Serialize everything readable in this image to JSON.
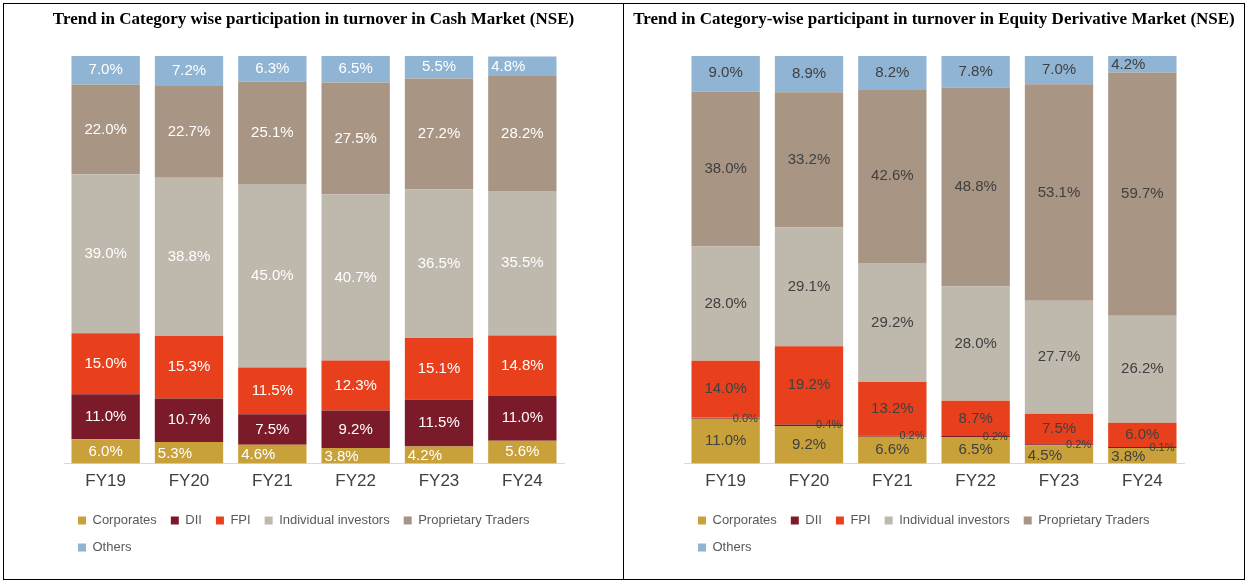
{
  "chart_data": [
    {
      "type": "bar",
      "title": "Trend in Category wise participation in turnover in Cash Market (NSE)",
      "categories": [
        "FY19",
        "FY20",
        "FY21",
        "FY22",
        "FY23",
        "FY24"
      ],
      "stacked": true,
      "ylim": [
        0,
        100
      ],
      "tick_labels": "x",
      "grid": false,
      "legend": "bottom",
      "series": [
        {
          "name": "Corporates",
          "color": "#c9a13a",
          "values": [
            6.0,
            5.3,
            4.6,
            3.8,
            4.2,
            5.6
          ],
          "value_labels": [
            "6.0%",
            "5.3%",
            "4.6%",
            "3.8%",
            "4.2%",
            "5.6%"
          ]
        },
        {
          "name": "DII",
          "color": "#7b1b2a",
          "values": [
            11.0,
            10.7,
            7.5,
            9.2,
            11.5,
            11.0
          ],
          "value_labels": [
            "11.0%",
            "10.7%",
            "7.5%",
            "9.2%",
            "11.5%",
            "11.0%"
          ]
        },
        {
          "name": "FPI",
          "color": "#e8401c",
          "values": [
            15.0,
            15.3,
            11.5,
            12.3,
            15.1,
            14.8
          ],
          "value_labels": [
            "15.0%",
            "15.3%",
            "11.5%",
            "12.3%",
            "15.1%",
            "14.8%"
          ]
        },
        {
          "name": "Individual investors",
          "color": "#bfb8ad",
          "values": [
            39.0,
            38.8,
            45.0,
            40.7,
            36.5,
            35.5
          ],
          "value_labels": [
            "39.0%",
            "38.8%",
            "45.0%",
            "40.7%",
            "36.5%",
            "35.5%"
          ]
        },
        {
          "name": "Proprietary Traders",
          "color": "#a89584",
          "values": [
            22.0,
            22.7,
            25.1,
            27.5,
            27.2,
            28.2
          ],
          "value_labels": [
            "22.0%",
            "22.7%",
            "25.1%",
            "27.5%",
            "27.2%",
            "28.2%"
          ]
        },
        {
          "name": "Others",
          "color": "#8fb4d4",
          "values": [
            7.0,
            7.2,
            6.3,
            6.5,
            5.5,
            4.8
          ],
          "value_labels": [
            "7.0%",
            "7.2%",
            "6.3%",
            "6.5%",
            "5.5%",
            "4.8%"
          ]
        }
      ]
    },
    {
      "type": "bar",
      "title": "Trend in Category-wise participant in turnover in Equity Derivative Market (NSE)",
      "categories": [
        "FY19",
        "FY20",
        "FY21",
        "FY22",
        "FY23",
        "FY24"
      ],
      "stacked": true,
      "ylim": [
        0,
        100
      ],
      "tick_labels": "x",
      "grid": false,
      "legend": "bottom",
      "series": [
        {
          "name": "Corporates",
          "color": "#c9a13a",
          "values": [
            11.0,
            9.2,
            6.6,
            6.5,
            4.5,
            3.8
          ],
          "value_labels": [
            "11.0%",
            "9.2%",
            "6.6%",
            "6.5%",
            "4.5%",
            "3.8%"
          ]
        },
        {
          "name": "DII",
          "color": "#7b1b2a",
          "values": [
            0.0,
            0.4,
            0.2,
            0.2,
            0.2,
            0.1
          ],
          "value_labels": [
            "0.0%",
            "0.4%",
            "0.2%",
            "0.2%",
            "0.2%",
            "0.1%"
          ]
        },
        {
          "name": "FPI",
          "color": "#e8401c",
          "values": [
            14.0,
            19.2,
            13.2,
            8.7,
            7.5,
            6.0
          ],
          "value_labels": [
            "14.0%",
            "19.2%",
            "13.2%",
            "8.7%",
            "7.5%",
            "6.0%"
          ]
        },
        {
          "name": "Individual investors",
          "color": "#bfb8ad",
          "values": [
            28.0,
            29.1,
            29.2,
            28.0,
            27.7,
            26.2
          ],
          "value_labels": [
            "28.0%",
            "29.1%",
            "29.2%",
            "28.0%",
            "27.7%",
            "26.2%"
          ]
        },
        {
          "name": "Proprietary Traders",
          "color": "#a89584",
          "values": [
            38.0,
            33.2,
            42.6,
            48.8,
            53.1,
            59.7
          ],
          "value_labels": [
            "38.0%",
            "33.2%",
            "42.6%",
            "48.8%",
            "53.1%",
            "59.7%"
          ]
        },
        {
          "name": "Others",
          "color": "#8fb4d4",
          "values": [
            9.0,
            8.9,
            8.2,
            7.8,
            7.0,
            4.2
          ],
          "value_labels": [
            "9.0%",
            "8.9%",
            "8.2%",
            "7.8%",
            "7.0%",
            "4.2%"
          ]
        }
      ]
    }
  ]
}
